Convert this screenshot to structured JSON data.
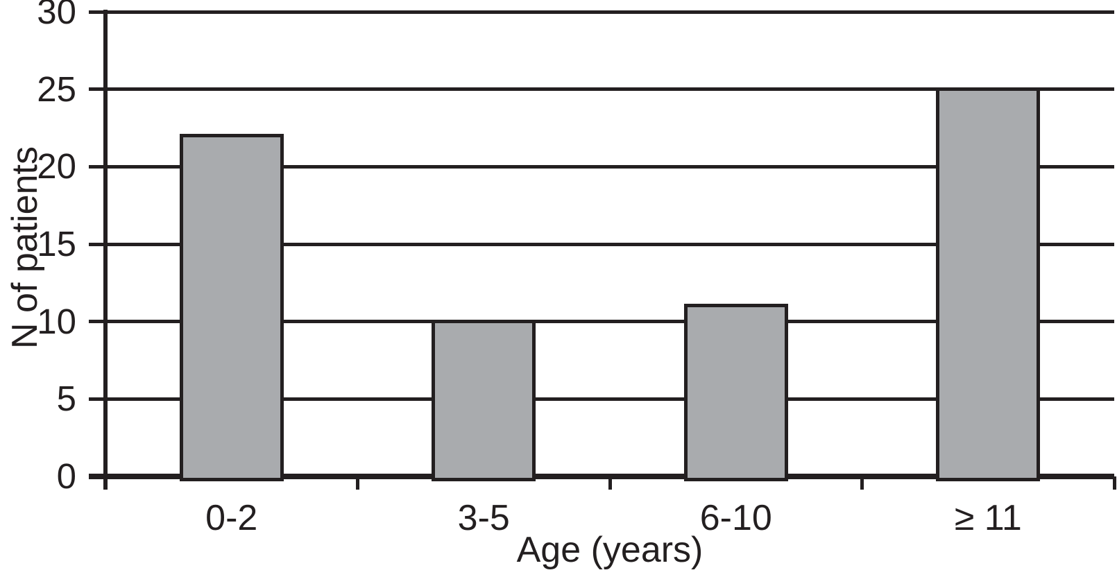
{
  "chart_data": {
    "type": "bar",
    "categories": [
      "0-2",
      "3-5",
      "6-10",
      "≥ 11"
    ],
    "values": [
      22,
      10,
      11,
      25
    ],
    "xlabel": "Age (years)",
    "ylabel": "N of patients",
    "ylim": [
      0,
      30
    ],
    "yticks": [
      0,
      5,
      10,
      15,
      20,
      25,
      30
    ],
    "grid": true,
    "legend_position": "none",
    "bar_color": "#a9abae",
    "line_color": "#231f20",
    "background_color": "#ffffff"
  }
}
